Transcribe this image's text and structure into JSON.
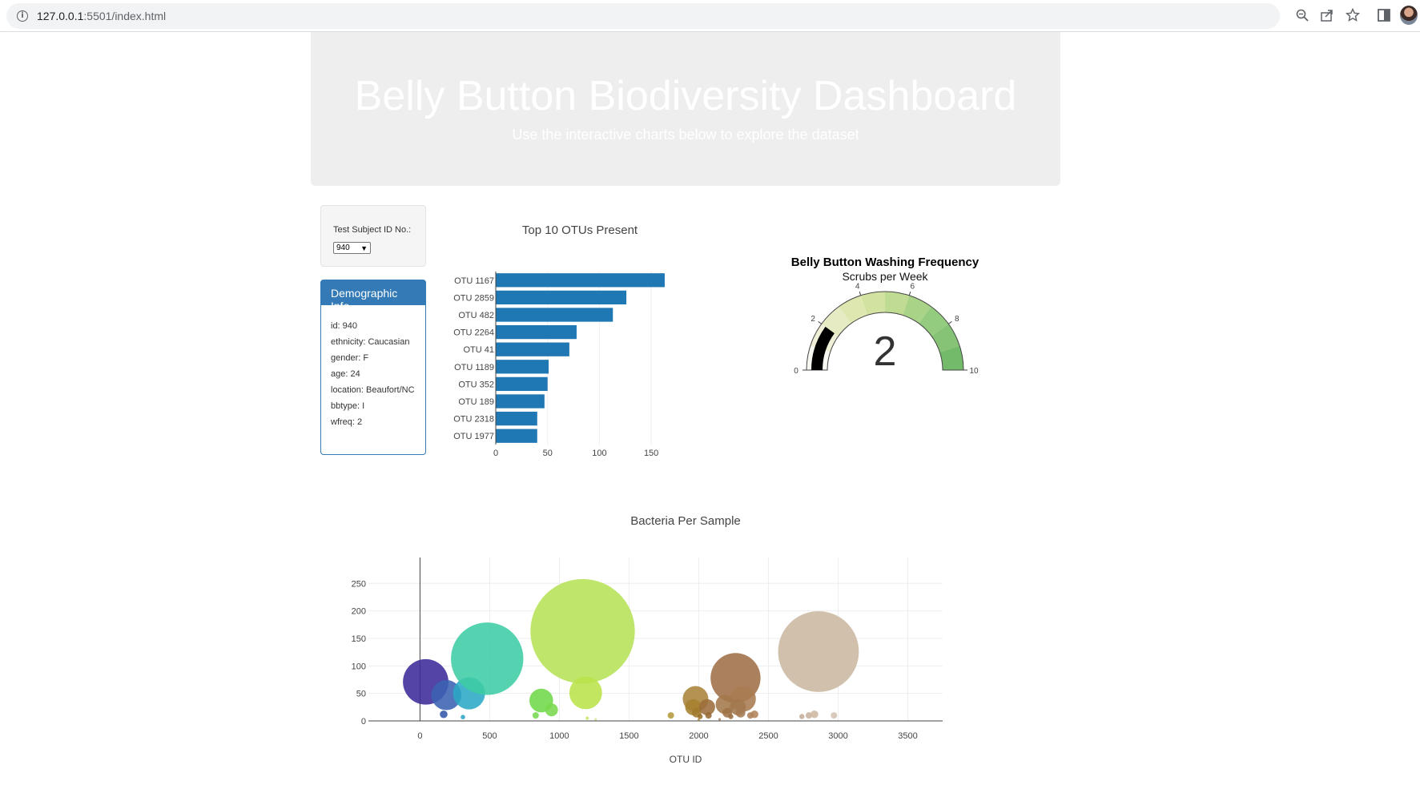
{
  "browser": {
    "url_host": "127.0.0.1",
    "url_rest": ":5501/index.html"
  },
  "header": {
    "title": "Belly Button Biodiversity Dashboard",
    "subtitle": "Use the interactive charts below to explore the dataset"
  },
  "selector": {
    "label": "Test Subject ID No.:",
    "value": "940"
  },
  "demographics": {
    "title": "Demographic Info",
    "rows": [
      "id: 940",
      "ethnicity: Caucasian",
      "gender: F",
      "age: 24",
      "location: Beaufort/NC",
      "bbtype: I",
      "wfreq: 2"
    ]
  },
  "chart_data": [
    {
      "type": "bar",
      "orientation": "horizontal",
      "title": "Top 10 OTUs Present",
      "categories": [
        "OTU 1167",
        "OTU 2859",
        "OTU 482",
        "OTU 2264",
        "OTU 41",
        "OTU 1189",
        "OTU 352",
        "OTU 189",
        "OTU 2318",
        "OTU 1977"
      ],
      "values": [
        163,
        126,
        113,
        78,
        71,
        51,
        50,
        47,
        40,
        40
      ],
      "xticks": [
        0,
        50,
        100,
        150
      ],
      "xlim": [
        0,
        170
      ],
      "color": "#1f77b4",
      "grid": true
    },
    {
      "type": "gauge",
      "title": "Belly Button Washing Frequency",
      "subtitle": "Scrubs per Week",
      "value": 2,
      "range": [
        0,
        10
      ],
      "ticks": [
        0,
        2,
        4,
        6,
        8,
        10
      ],
      "bar_color": "#000000",
      "step_colors": [
        "#f8f8f2",
        "#f0f0d8",
        "#e6ebc3",
        "#dfe7b0",
        "#d2e3a1",
        "#c0dc92",
        "#a9d387",
        "#94cc7f",
        "#86c376",
        "#74ba6b"
      ]
    },
    {
      "type": "scatter",
      "mode": "bubble",
      "title": "Bacteria Per Sample",
      "xlabel": "OTU ID",
      "ylabel": "",
      "xticks": [
        0,
        500,
        1000,
        1500,
        2000,
        2500,
        3000,
        3500
      ],
      "yticks": [
        0,
        50,
        100,
        150,
        200,
        250
      ],
      "xlim": [
        -370,
        3750
      ],
      "ylim": [
        0,
        297
      ],
      "points": [
        {
          "x": 41,
          "y": 71,
          "color": "#3c2a9a"
        },
        {
          "x": 189,
          "y": 47,
          "color": "#3b62b3"
        },
        {
          "x": 352,
          "y": 50,
          "color": "#2aa9c4"
        },
        {
          "x": 482,
          "y": 113,
          "color": "#3ecca4"
        },
        {
          "x": 1167,
          "y": 163,
          "color": "#b6e356"
        },
        {
          "x": 1189,
          "y": 51,
          "color": "#b9e249"
        },
        {
          "x": 2264,
          "y": 78,
          "color": "#9f7047"
        },
        {
          "x": 2859,
          "y": 126,
          "color": "#cbb8a0"
        },
        {
          "x": 2318,
          "y": 40,
          "color": "#a87b52"
        },
        {
          "x": 1977,
          "y": 40,
          "color": "#a8833a"
        },
        {
          "x": 170,
          "y": 12,
          "color": "#3457a8"
        },
        {
          "x": 308,
          "y": 7,
          "color": "#2fa4c8"
        },
        {
          "x": 870,
          "y": 37,
          "color": "#6fd84a"
        },
        {
          "x": 944,
          "y": 20,
          "color": "#77d84c"
        },
        {
          "x": 830,
          "y": 10,
          "color": "#75d94e"
        },
        {
          "x": 1200,
          "y": 5,
          "color": "#c8e66a"
        },
        {
          "x": 1260,
          "y": 3,
          "color": "#d0e98a"
        },
        {
          "x": 1800,
          "y": 10,
          "color": "#b49a3a"
        },
        {
          "x": 1960,
          "y": 25,
          "color": "#a6812f"
        },
        {
          "x": 1985,
          "y": 15,
          "color": "#a07a2c"
        },
        {
          "x": 2010,
          "y": 8,
          "color": "#9a7028"
        },
        {
          "x": 2060,
          "y": 25,
          "color": "#9c6d3a"
        },
        {
          "x": 2070,
          "y": 10,
          "color": "#986935"
        },
        {
          "x": 2190,
          "y": 30,
          "color": "#a3774a"
        },
        {
          "x": 2205,
          "y": 15,
          "color": "#9e7345"
        },
        {
          "x": 2230,
          "y": 8,
          "color": "#9a6e42"
        },
        {
          "x": 2280,
          "y": 25,
          "color": "#a2774e"
        },
        {
          "x": 2300,
          "y": 15,
          "color": "#a47a52"
        },
        {
          "x": 2370,
          "y": 10,
          "color": "#ad8058"
        },
        {
          "x": 2400,
          "y": 12,
          "color": "#b08459"
        },
        {
          "x": 2740,
          "y": 8,
          "color": "#c4ad97"
        },
        {
          "x": 2790,
          "y": 10,
          "color": "#c9b39e"
        },
        {
          "x": 2830,
          "y": 12,
          "color": "#cdb8a3"
        },
        {
          "x": 2970,
          "y": 10,
          "color": "#d4c2b0"
        },
        {
          "x": 2000,
          "y": 2,
          "color": "#a78a45"
        },
        {
          "x": 2150,
          "y": 3,
          "color": "#a58060"
        }
      ],
      "sizes": [
        71,
        47,
        50,
        113,
        163,
        51,
        78,
        126,
        40,
        40,
        12,
        7,
        37,
        20,
        10,
        5,
        3,
        10,
        25,
        15,
        8,
        25,
        10,
        30,
        15,
        8,
        25,
        15,
        10,
        12,
        8,
        10,
        12,
        10,
        2,
        3
      ],
      "grid": true
    }
  ]
}
